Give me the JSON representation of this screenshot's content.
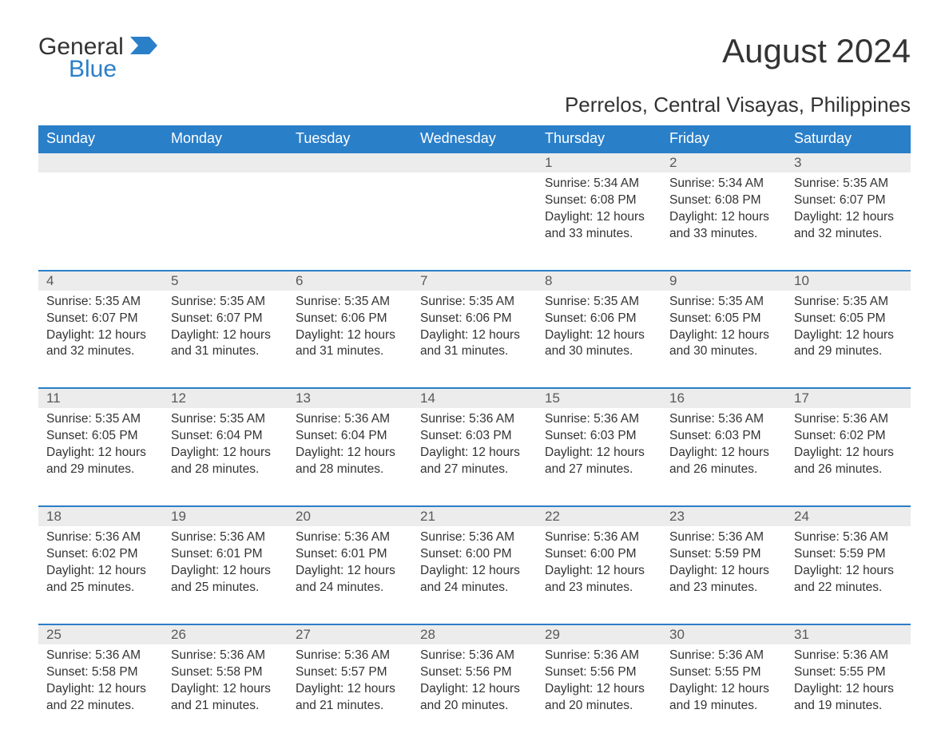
{
  "logo": {
    "word1": "General",
    "word2": "Blue",
    "flag_color": "#2a7fc9"
  },
  "title": "August 2024",
  "subtitle": "Perrelos, Central Visayas, Philippines",
  "colors": {
    "header_bg": "#2a7fc9",
    "header_text": "#ffffff",
    "daynum_bg": "#ececec",
    "daynum_text": "#595959",
    "row_divider": "#2a7fc9",
    "body_text": "#333333",
    "page_bg": "#ffffff"
  },
  "typography": {
    "title_fontsize": 42,
    "subtitle_fontsize": 26,
    "header_fontsize": 18,
    "daynum_fontsize": 17,
    "detail_fontsize": 15.5,
    "font_family": "Arial"
  },
  "day_headers": [
    "Sunday",
    "Monday",
    "Tuesday",
    "Wednesday",
    "Thursday",
    "Friday",
    "Saturday"
  ],
  "weeks": [
    {
      "days": [
        null,
        null,
        null,
        null,
        {
          "num": "1",
          "sunrise": "Sunrise: 5:34 AM",
          "sunset": "Sunset: 6:08 PM",
          "daylight": "Daylight: 12 hours and 33 minutes."
        },
        {
          "num": "2",
          "sunrise": "Sunrise: 5:34 AM",
          "sunset": "Sunset: 6:08 PM",
          "daylight": "Daylight: 12 hours and 33 minutes."
        },
        {
          "num": "3",
          "sunrise": "Sunrise: 5:35 AM",
          "sunset": "Sunset: 6:07 PM",
          "daylight": "Daylight: 12 hours and 32 minutes."
        }
      ]
    },
    {
      "days": [
        {
          "num": "4",
          "sunrise": "Sunrise: 5:35 AM",
          "sunset": "Sunset: 6:07 PM",
          "daylight": "Daylight: 12 hours and 32 minutes."
        },
        {
          "num": "5",
          "sunrise": "Sunrise: 5:35 AM",
          "sunset": "Sunset: 6:07 PM",
          "daylight": "Daylight: 12 hours and 31 minutes."
        },
        {
          "num": "6",
          "sunrise": "Sunrise: 5:35 AM",
          "sunset": "Sunset: 6:06 PM",
          "daylight": "Daylight: 12 hours and 31 minutes."
        },
        {
          "num": "7",
          "sunrise": "Sunrise: 5:35 AM",
          "sunset": "Sunset: 6:06 PM",
          "daylight": "Daylight: 12 hours and 31 minutes."
        },
        {
          "num": "8",
          "sunrise": "Sunrise: 5:35 AM",
          "sunset": "Sunset: 6:06 PM",
          "daylight": "Daylight: 12 hours and 30 minutes."
        },
        {
          "num": "9",
          "sunrise": "Sunrise: 5:35 AM",
          "sunset": "Sunset: 6:05 PM",
          "daylight": "Daylight: 12 hours and 30 minutes."
        },
        {
          "num": "10",
          "sunrise": "Sunrise: 5:35 AM",
          "sunset": "Sunset: 6:05 PM",
          "daylight": "Daylight: 12 hours and 29 minutes."
        }
      ]
    },
    {
      "days": [
        {
          "num": "11",
          "sunrise": "Sunrise: 5:35 AM",
          "sunset": "Sunset: 6:05 PM",
          "daylight": "Daylight: 12 hours and 29 minutes."
        },
        {
          "num": "12",
          "sunrise": "Sunrise: 5:35 AM",
          "sunset": "Sunset: 6:04 PM",
          "daylight": "Daylight: 12 hours and 28 minutes."
        },
        {
          "num": "13",
          "sunrise": "Sunrise: 5:36 AM",
          "sunset": "Sunset: 6:04 PM",
          "daylight": "Daylight: 12 hours and 28 minutes."
        },
        {
          "num": "14",
          "sunrise": "Sunrise: 5:36 AM",
          "sunset": "Sunset: 6:03 PM",
          "daylight": "Daylight: 12 hours and 27 minutes."
        },
        {
          "num": "15",
          "sunrise": "Sunrise: 5:36 AM",
          "sunset": "Sunset: 6:03 PM",
          "daylight": "Daylight: 12 hours and 27 minutes."
        },
        {
          "num": "16",
          "sunrise": "Sunrise: 5:36 AM",
          "sunset": "Sunset: 6:03 PM",
          "daylight": "Daylight: 12 hours and 26 minutes."
        },
        {
          "num": "17",
          "sunrise": "Sunrise: 5:36 AM",
          "sunset": "Sunset: 6:02 PM",
          "daylight": "Daylight: 12 hours and 26 minutes."
        }
      ]
    },
    {
      "days": [
        {
          "num": "18",
          "sunrise": "Sunrise: 5:36 AM",
          "sunset": "Sunset: 6:02 PM",
          "daylight": "Daylight: 12 hours and 25 minutes."
        },
        {
          "num": "19",
          "sunrise": "Sunrise: 5:36 AM",
          "sunset": "Sunset: 6:01 PM",
          "daylight": "Daylight: 12 hours and 25 minutes."
        },
        {
          "num": "20",
          "sunrise": "Sunrise: 5:36 AM",
          "sunset": "Sunset: 6:01 PM",
          "daylight": "Daylight: 12 hours and 24 minutes."
        },
        {
          "num": "21",
          "sunrise": "Sunrise: 5:36 AM",
          "sunset": "Sunset: 6:00 PM",
          "daylight": "Daylight: 12 hours and 24 minutes."
        },
        {
          "num": "22",
          "sunrise": "Sunrise: 5:36 AM",
          "sunset": "Sunset: 6:00 PM",
          "daylight": "Daylight: 12 hours and 23 minutes."
        },
        {
          "num": "23",
          "sunrise": "Sunrise: 5:36 AM",
          "sunset": "Sunset: 5:59 PM",
          "daylight": "Daylight: 12 hours and 23 minutes."
        },
        {
          "num": "24",
          "sunrise": "Sunrise: 5:36 AM",
          "sunset": "Sunset: 5:59 PM",
          "daylight": "Daylight: 12 hours and 22 minutes."
        }
      ]
    },
    {
      "days": [
        {
          "num": "25",
          "sunrise": "Sunrise: 5:36 AM",
          "sunset": "Sunset: 5:58 PM",
          "daylight": "Daylight: 12 hours and 22 minutes."
        },
        {
          "num": "26",
          "sunrise": "Sunrise: 5:36 AM",
          "sunset": "Sunset: 5:58 PM",
          "daylight": "Daylight: 12 hours and 21 minutes."
        },
        {
          "num": "27",
          "sunrise": "Sunrise: 5:36 AM",
          "sunset": "Sunset: 5:57 PM",
          "daylight": "Daylight: 12 hours and 21 minutes."
        },
        {
          "num": "28",
          "sunrise": "Sunrise: 5:36 AM",
          "sunset": "Sunset: 5:56 PM",
          "daylight": "Daylight: 12 hours and 20 minutes."
        },
        {
          "num": "29",
          "sunrise": "Sunrise: 5:36 AM",
          "sunset": "Sunset: 5:56 PM",
          "daylight": "Daylight: 12 hours and 20 minutes."
        },
        {
          "num": "30",
          "sunrise": "Sunrise: 5:36 AM",
          "sunset": "Sunset: 5:55 PM",
          "daylight": "Daylight: 12 hours and 19 minutes."
        },
        {
          "num": "31",
          "sunrise": "Sunrise: 5:36 AM",
          "sunset": "Sunset: 5:55 PM",
          "daylight": "Daylight: 12 hours and 19 minutes."
        }
      ]
    }
  ]
}
